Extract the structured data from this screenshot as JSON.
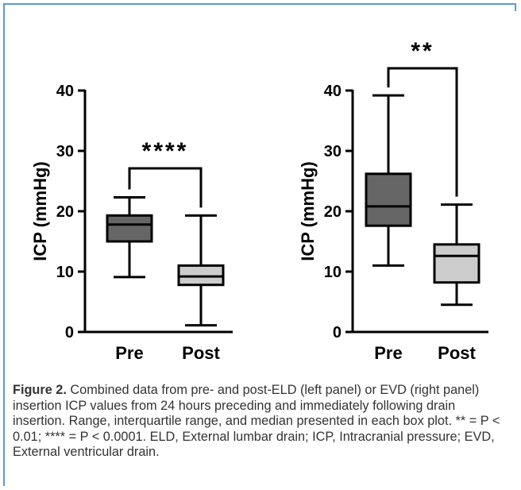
{
  "chart_data": [
    {
      "type": "box",
      "panel": "left",
      "ylabel": "ICP (mmHg)",
      "ylim": [
        0,
        40
      ],
      "yticks": [
        "0",
        "10",
        "20",
        "30",
        "40"
      ],
      "categories": [
        "Pre",
        "Post"
      ],
      "boxes": [
        {
          "min": 9.1,
          "q1": 15.0,
          "median": 17.8,
          "q3": 19.3,
          "max": 22.3,
          "fill": "#666666"
        },
        {
          "min": 1.1,
          "q1": 7.8,
          "median": 9.2,
          "q3": 11.0,
          "max": 19.3,
          "fill": "#cccccc"
        }
      ],
      "significance": "****"
    },
    {
      "type": "box",
      "panel": "right",
      "ylabel": "ICP (mmHg)",
      "ylim": [
        0,
        40
      ],
      "yticks": [
        "0",
        "10",
        "20",
        "30",
        "40"
      ],
      "categories": [
        "Pre",
        "Post"
      ],
      "boxes": [
        {
          "min": 11.0,
          "q1": 17.6,
          "median": 20.8,
          "q3": 26.2,
          "max": 39.2,
          "fill": "#666666"
        },
        {
          "min": 4.5,
          "q1": 8.2,
          "median": 12.6,
          "q3": 14.5,
          "max": 21.1,
          "fill": "#cccccc"
        }
      ],
      "significance": "**"
    }
  ],
  "caption": {
    "label": "Figure 2.",
    "text": "Combined data from pre- and post-ELD (left panel) or EVD (right panel) insertion ICP values from 24 hours preceding and immediately following drain insertion. Range, interquartile range, and median presented in each box plot. ** = P < 0.01; **** = P < 0.0001. ELD, External lumbar drain; ICP, Intracranial pressure; EVD, External ventricular drain."
  },
  "colors": {
    "frame": "#5b9bd5",
    "ink": "#000000",
    "pre_fill": "#666666",
    "post_fill": "#cccccc"
  }
}
